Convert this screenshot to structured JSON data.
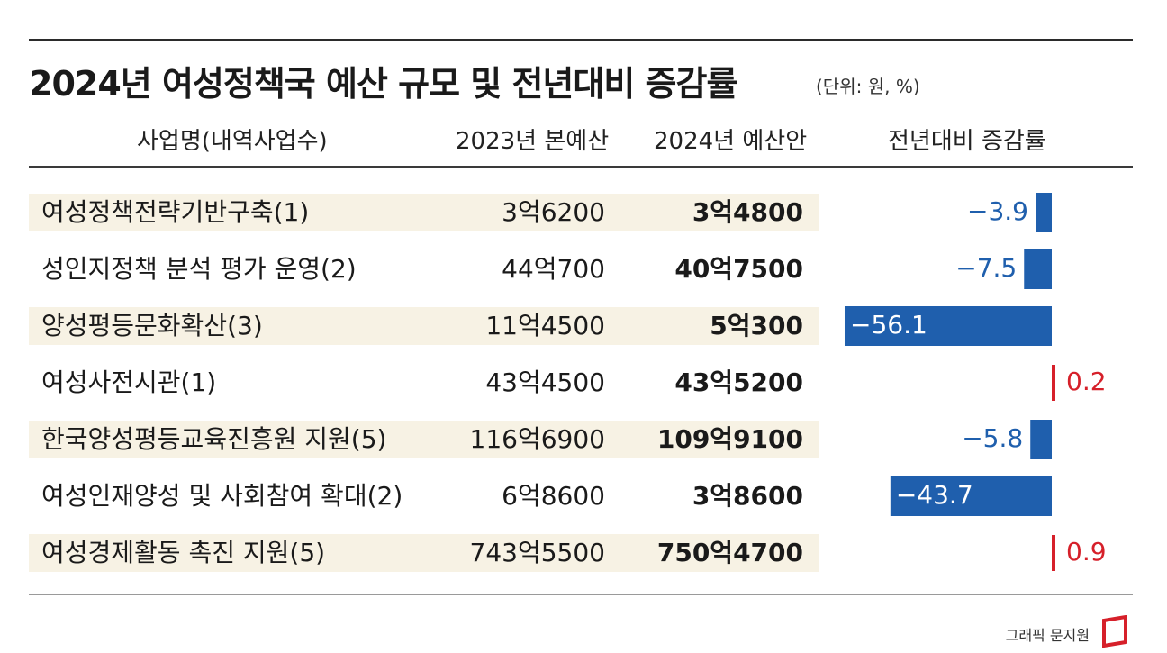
{
  "title": "2024년 여성정책국 예산 규모 및 전년대비 증감률",
  "unit": "(단위: 원, %)",
  "credit": "그래픽 문지원",
  "colors": {
    "negative": "#1f5fad",
    "positive": "#d6202a",
    "band": "#f7f2e4"
  },
  "chart_data": {
    "type": "table",
    "columns": [
      "사업명(내역사업수)",
      "2023년 본예산",
      "2024년 예산안",
      "전년대비 증감률"
    ],
    "rows": [
      {
        "name": "여성정책전략기반구축(1)",
        "budget_2023": "3억6200",
        "budget_2024": "3억4800",
        "change": -3.9,
        "change_label": "−3.9"
      },
      {
        "name": "성인지정책 분석 평가 운영(2)",
        "budget_2023": "44억700",
        "budget_2024": "40억7500",
        "change": -7.5,
        "change_label": "−7.5"
      },
      {
        "name": "양성평등문화확산(3)",
        "budget_2023": "11억4500",
        "budget_2024": "5억300",
        "change": -56.1,
        "change_label": "−56.1"
      },
      {
        "name": "여성사전시관(1)",
        "budget_2023": "43억4500",
        "budget_2024": "43억5200",
        "change": 0.2,
        "change_label": "0.2"
      },
      {
        "name": "한국양성평등교육진흥원 지원(5)",
        "budget_2023": "116억6900",
        "budget_2024": "109억9100",
        "change": -5.8,
        "change_label": "−5.8"
      },
      {
        "name": "여성인재양성 및 사회참여 확대(2)",
        "budget_2023": "6억8600",
        "budget_2024": "3억8600",
        "change": -43.7,
        "change_label": "−43.7"
      },
      {
        "name": "여성경제활동 촉진 지원(5)",
        "budget_2023": "743억5500",
        "budget_2024": "750억4700",
        "change": 0.9,
        "change_label": "0.9"
      }
    ]
  }
}
